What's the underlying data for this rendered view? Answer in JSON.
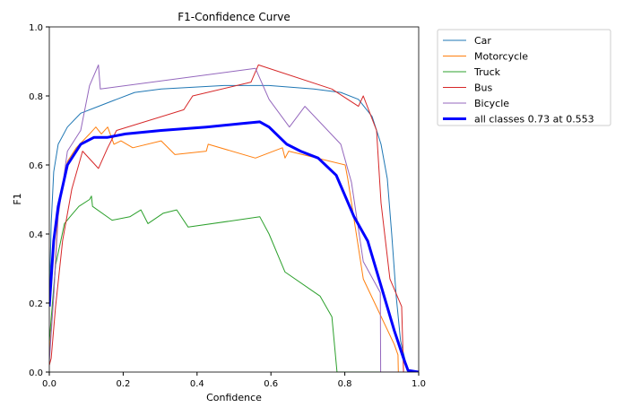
{
  "chart_data": {
    "type": "line",
    "title": "F1-Confidence Curve",
    "xlabel": "Confidence",
    "ylabel": "F1",
    "xlim": [
      0,
      1
    ],
    "ylim": [
      0,
      1
    ],
    "xticks": [
      "0.0",
      "0.2",
      "0.4",
      "0.6",
      "0.8",
      "1.0"
    ],
    "yticks": [
      "0.0",
      "0.2",
      "0.4",
      "0.6",
      "0.8",
      "1.0"
    ],
    "grid": false,
    "legend_placement": "outside-top-right",
    "series": [
      {
        "name": "Car",
        "color": "#1f77b4",
        "width": 1,
        "x": [
          0,
          0.005,
          0.012,
          0.024,
          0.049,
          0.085,
          0.133,
          0.182,
          0.231,
          0.303,
          0.473,
          0.595,
          0.716,
          0.789,
          0.837,
          0.874,
          0.898,
          0.915,
          0.927,
          0.939,
          0.951,
          0.971,
          1
        ],
        "y": [
          0.2,
          0.43,
          0.58,
          0.66,
          0.71,
          0.75,
          0.77,
          0.79,
          0.81,
          0.82,
          0.83,
          0.83,
          0.82,
          0.81,
          0.79,
          0.74,
          0.66,
          0.56,
          0.4,
          0.22,
          0.09,
          0,
          0
        ]
      },
      {
        "name": "Motorcycle",
        "color": "#ff7f0e",
        "width": 1,
        "x": [
          0,
          0.012,
          0.024,
          0.049,
          0.073,
          0.109,
          0.126,
          0.141,
          0.158,
          0.175,
          0.194,
          0.226,
          0.303,
          0.34,
          0.425,
          0.43,
          0.558,
          0.631,
          0.638,
          0.648,
          0.801,
          0.808,
          0.85,
          0.934,
          0.944,
          0.945,
          1
        ],
        "y": [
          0.05,
          0.22,
          0.48,
          0.61,
          0.65,
          0.69,
          0.71,
          0.69,
          0.71,
          0.66,
          0.67,
          0.65,
          0.67,
          0.63,
          0.64,
          0.66,
          0.62,
          0.65,
          0.62,
          0.64,
          0.6,
          0.56,
          0.27,
          0.08,
          0.05,
          0,
          0
        ]
      },
      {
        "name": "Truck",
        "color": "#2ca02c",
        "width": 1,
        "x": [
          0,
          0.017,
          0.041,
          0.056,
          0.08,
          0.109,
          0.114,
          0.117,
          0.17,
          0.218,
          0.248,
          0.267,
          0.308,
          0.345,
          0.376,
          0.57,
          0.595,
          0.638,
          0.733,
          0.765,
          0.779,
          1
        ],
        "y": [
          0.09,
          0.31,
          0.43,
          0.45,
          0.48,
          0.5,
          0.51,
          0.48,
          0.44,
          0.45,
          0.47,
          0.43,
          0.46,
          0.47,
          0.42,
          0.45,
          0.4,
          0.29,
          0.22,
          0.16,
          0,
          0
        ]
      },
      {
        "name": "Bus",
        "color": "#d62728",
        "width": 1,
        "x": [
          0,
          0.005,
          0.017,
          0.036,
          0.061,
          0.09,
          0.133,
          0.158,
          0.182,
          0.364,
          0.388,
          0.546,
          0.566,
          0.765,
          0.837,
          0.85,
          0.886,
          0.898,
          0.922,
          0.954,
          0.959,
          1
        ],
        "y": [
          0.02,
          0.04,
          0.19,
          0.38,
          0.53,
          0.64,
          0.59,
          0.65,
          0.7,
          0.76,
          0.8,
          0.84,
          0.89,
          0.82,
          0.77,
          0.8,
          0.7,
          0.49,
          0.27,
          0.19,
          0,
          0
        ]
      },
      {
        "name": "Bicycle",
        "color": "#9467bd",
        "width": 1,
        "x": [
          0,
          0.012,
          0.024,
          0.049,
          0.085,
          0.109,
          0.133,
          0.138,
          0.558,
          0.595,
          0.65,
          0.692,
          0.789,
          0.818,
          0.85,
          0.896,
          0.897,
          1
        ],
        "y": [
          0.03,
          0.22,
          0.45,
          0.64,
          0.7,
          0.83,
          0.89,
          0.82,
          0.88,
          0.79,
          0.71,
          0.77,
          0.66,
          0.55,
          0.32,
          0.23,
          0,
          0
        ]
      },
      {
        "name": "all classes 0.73 at 0.553",
        "color": "#0000ff",
        "width": 3,
        "x": [
          0,
          0.012,
          0.024,
          0.049,
          0.085,
          0.121,
          0.158,
          0.206,
          0.303,
          0.425,
          0.522,
          0.57,
          0.595,
          0.643,
          0.68,
          0.728,
          0.777,
          0.825,
          0.862,
          0.898,
          0.934,
          0.959,
          0.971,
          1
        ],
        "y": [
          0.19,
          0.38,
          0.48,
          0.6,
          0.66,
          0.68,
          0.68,
          0.69,
          0.7,
          0.71,
          0.72,
          0.725,
          0.71,
          0.66,
          0.64,
          0.62,
          0.57,
          0.45,
          0.38,
          0.25,
          0.12,
          0.04,
          0.005,
          0
        ]
      }
    ]
  }
}
